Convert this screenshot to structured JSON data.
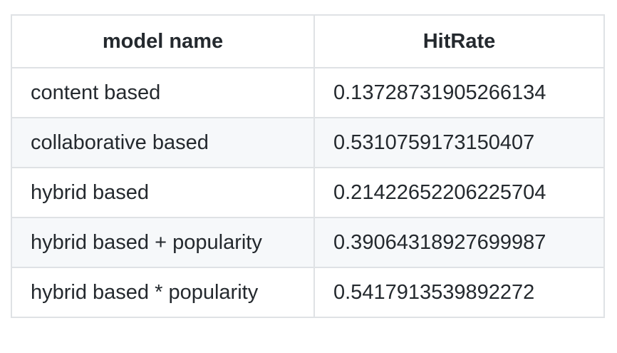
{
  "table": {
    "headers": {
      "model_name": "model name",
      "hitrate": "HitRate"
    },
    "rows": [
      {
        "model_name": "content based",
        "hitrate": "0.13728731905266134"
      },
      {
        "model_name": "collaborative based",
        "hitrate": "0.5310759173150407"
      },
      {
        "model_name": "hybrid based",
        "hitrate": "0.21422652206225704"
      },
      {
        "model_name": "hybrid based + popularity",
        "hitrate": "0.39064318927699987"
      },
      {
        "model_name": "hybrid based * popularity",
        "hitrate": "0.5417913539892272"
      }
    ]
  },
  "colors": {
    "border": "#dfe2e5",
    "stripe": "#f6f8fa",
    "text": "#24292e"
  }
}
